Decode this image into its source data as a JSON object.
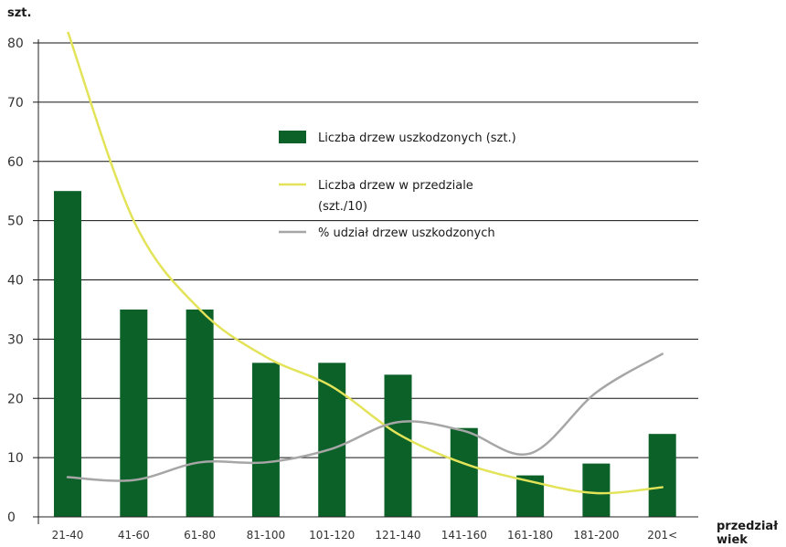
{
  "chart_data": {
    "type": "bar",
    "ylabel": "szt.",
    "xlabel_lines": [
      "przedział",
      "wiek"
    ],
    "ylim": [
      0,
      80
    ],
    "yticks": [
      0,
      10,
      20,
      30,
      40,
      50,
      60,
      70,
      80
    ],
    "grid": true,
    "categories": [
      "21-40",
      "41-60",
      "61-80",
      "81-100",
      "101-120",
      "121-140",
      "141-160",
      "161-180",
      "181-200",
      "201<"
    ],
    "series": [
      {
        "name": "Liczba drzew uszkodzonych (szt.)",
        "kind": "bar",
        "color": "#0b6127",
        "values": [
          55,
          35,
          35,
          26,
          26,
          24,
          15,
          7,
          9,
          14
        ]
      },
      {
        "name": "Liczba drzew w przedziale",
        "name_line2": "(szt./10)",
        "kind": "line",
        "color": "#e3e35a",
        "values": [
          82,
          50,
          35,
          27,
          22,
          14,
          9,
          6,
          4,
          5
        ]
      },
      {
        "name": "% udział drzew uszkodzonych",
        "kind": "line",
        "color": "#a6a6a6",
        "values": [
          6.7,
          6.2,
          9.2,
          9.2,
          11.5,
          16,
          14.5,
          10.7,
          21,
          27.5
        ]
      }
    ],
    "legend_position": "upper-center"
  }
}
